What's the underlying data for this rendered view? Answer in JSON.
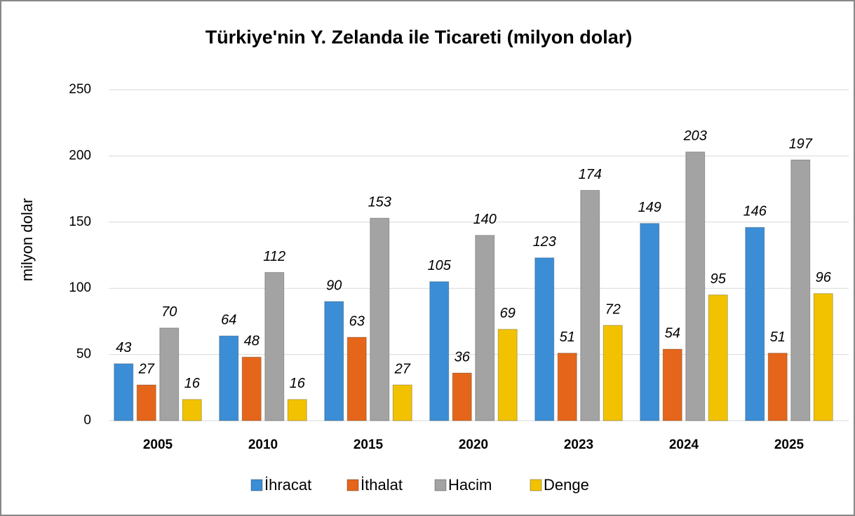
{
  "chart_data": {
    "type": "bar",
    "title": "Türkiye'nin Y. Zelanda ile Ticareti (milyon dolar)",
    "ylabel": "milyon dolar",
    "categories": [
      "2005",
      "2010",
      "2015",
      "2020",
      "2023",
      "2024",
      "2025"
    ],
    "series": [
      {
        "name": "İhracat",
        "color": "#3b8ed6",
        "values": [
          43,
          64,
          90,
          105,
          123,
          149,
          146
        ]
      },
      {
        "name": "İthalat",
        "color": "#e5661a",
        "values": [
          27,
          48,
          63,
          36,
          51,
          54,
          51
        ]
      },
      {
        "name": "Hacim",
        "color": "#a3a3a3",
        "values": [
          70,
          112,
          153,
          140,
          174,
          203,
          197
        ]
      },
      {
        "name": "Denge",
        "color": "#f2c200",
        "values": [
          16,
          16,
          27,
          69,
          72,
          95,
          96
        ]
      }
    ],
    "ylim": [
      0,
      250
    ],
    "yticks": [
      0,
      50,
      100,
      150,
      200,
      250
    ],
    "grid": true,
    "legend": "bottom"
  }
}
